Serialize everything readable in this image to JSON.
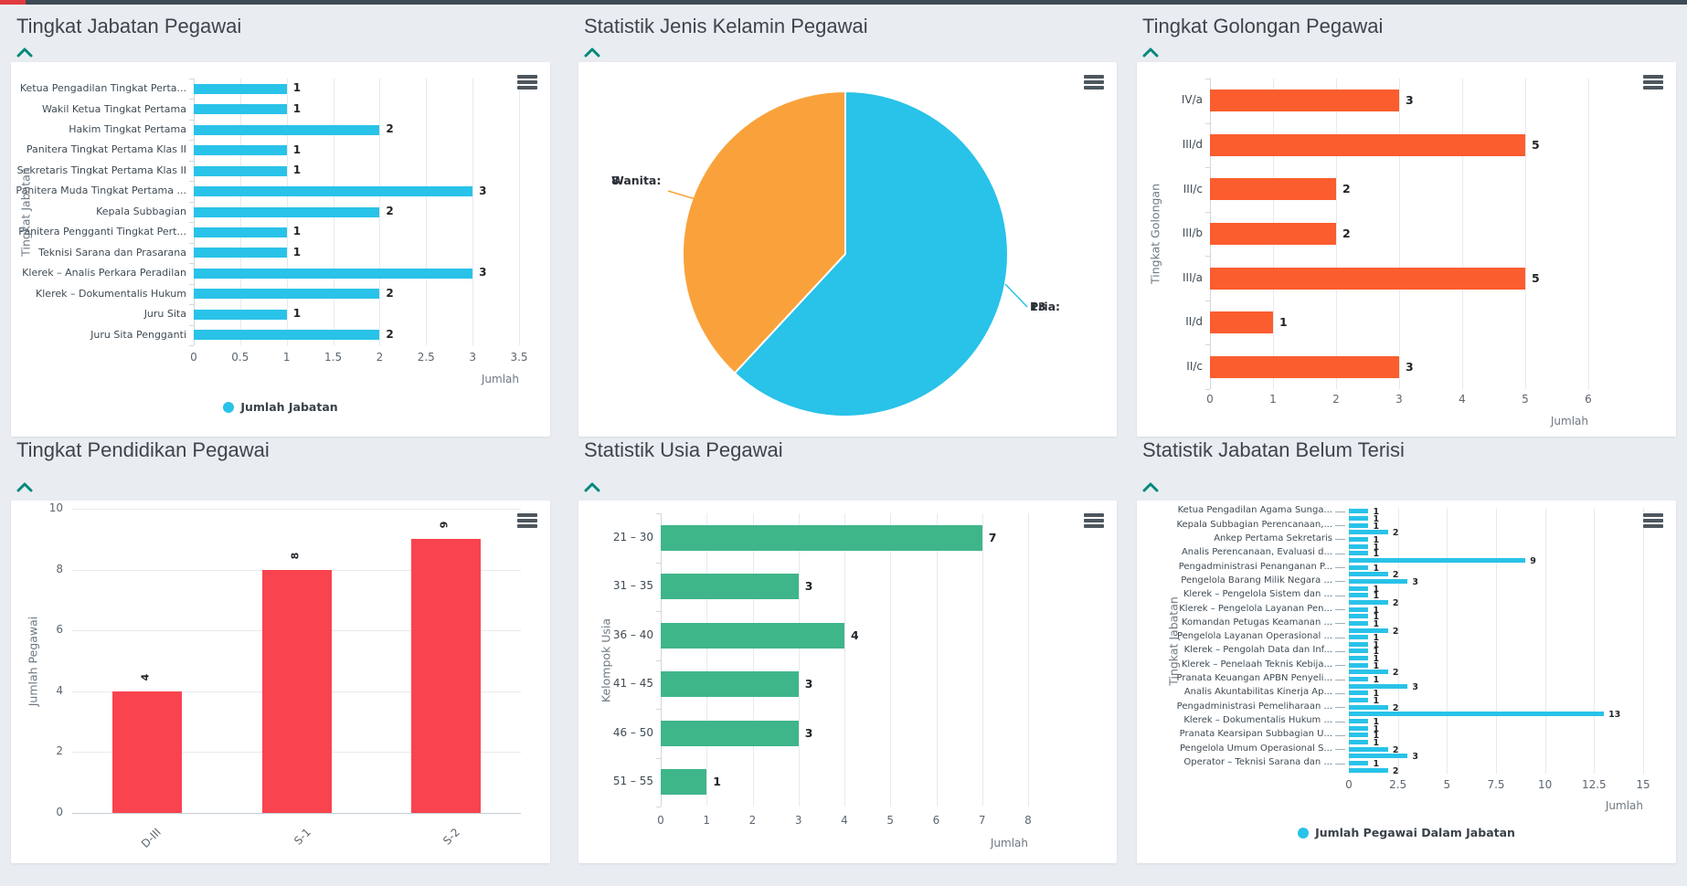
{
  "page": {
    "background": "#e9edf2",
    "top_strip_color": "#3e4b54",
    "top_strip_accent": "#e23b3f",
    "accent_teal": "#00897B"
  },
  "chart_data": [
    {
      "type": "bar",
      "orientation": "horizontal",
      "title": "Tingkat Jabatan Pegawai",
      "categories": [
        "Ketua Pengadilan Tingkat Perta...",
        "Wakil Ketua Tingkat Pertama",
        "Hakim Tingkat Pertama",
        "Panitera Tingkat Pertama Klas II",
        "Sekretaris Tingkat Pertama Klas II",
        "Panitera Muda Tingkat Pertama ...",
        "Kepala Subbagian",
        "Panitera Pengganti Tingkat Pert...",
        "Teknisi Sarana dan Prasarana",
        "Klerek – Analis Perkara Peradilan",
        "Klerek – Dokumentalis Hukum",
        "Juru Sita",
        "Juru Sita Pengganti"
      ],
      "values": [
        1,
        1,
        2,
        1,
        1,
        3,
        2,
        1,
        1,
        3,
        2,
        1,
        2
      ],
      "xticks": [
        0,
        0.5,
        1,
        1.5,
        2,
        2.5,
        3,
        3.5
      ],
      "xmax": 3.5,
      "xlabel": "Jumlah",
      "ylabel": "Tingkat Jabatan",
      "legend": "Jumlah Jabatan",
      "color": "#29C2E8",
      "grid": "vertical"
    },
    {
      "type": "pie",
      "title": "Statistik Jenis Kelamin Pegawai",
      "slices": [
        {
          "label": "Pria",
          "value": 13,
          "color": "#29C2E8"
        },
        {
          "label": "Wanita",
          "value": 8,
          "color": "#F9A23C"
        }
      ],
      "total": 21
    },
    {
      "type": "bar",
      "orientation": "horizontal",
      "title": "Tingkat Golongan Pegawai",
      "categories": [
        "IV/a",
        "III/d",
        "III/c",
        "III/b",
        "III/a",
        "II/d",
        "II/c"
      ],
      "values": [
        3,
        5,
        2,
        2,
        5,
        1,
        3
      ],
      "xticks": [
        0,
        1,
        2,
        3,
        4,
        5,
        6
      ],
      "xmax": 6,
      "xlabel": "Jumlah",
      "ylabel": "Tingkat Golongan",
      "color": "#FB5D2E",
      "grid": "vertical"
    },
    {
      "type": "bar",
      "orientation": "vertical",
      "title": "Tingkat Pendidikan Pegawai",
      "categories": [
        "D-III",
        "S-1",
        "S-2"
      ],
      "values": [
        4,
        8,
        9
      ],
      "yticks": [
        0,
        2,
        4,
        6,
        8,
        10
      ],
      "ymax": 10,
      "ylabel": "Jumlah Pegawai",
      "color": "#F9434F",
      "grid": "horizontal"
    },
    {
      "type": "bar",
      "orientation": "horizontal",
      "title": "Statistik Usia Pegawai",
      "categories": [
        "21 – 30",
        "31 – 35",
        "36 – 40",
        "41 – 45",
        "46 – 50",
        "51 – 55"
      ],
      "values": [
        7,
        3,
        4,
        3,
        3,
        1
      ],
      "xticks": [
        0,
        1,
        2,
        3,
        4,
        5,
        6,
        7,
        8
      ],
      "xmax": 8,
      "xlabel": "Jumlah",
      "ylabel": "Kelompok Usia",
      "color": "#3FB58A",
      "grid": "vertical"
    },
    {
      "type": "bar",
      "orientation": "horizontal-dense",
      "title": "Statistik Jabatan Belum Terisi",
      "categories": [
        "Ketua Pengadilan Agama Sunga...",
        "Kepala Subbagian Perencanaan,...",
        "Ankep Pertama Sekretaris",
        "Analis Perencanaan, Evaluasi d...",
        "Pengadministrasi Penanganan P...",
        "Pengelola Barang Milik Negara ...",
        "Klerek – Pengelola Sistem dan ...",
        "Klerek – Pengelola Layanan Pen...",
        "Komandan Petugas Keamanan ...",
        "Pengelola Layanan Operasional ...",
        "Klerek – Pengolah Data dan Inf...",
        "Klerek – Penelaah Teknis Kebija...",
        "Pranata Keuangan APBN Penyeli...",
        "Analis Akuntabilitas Kinerja Ap...",
        "Pengadministrasi Pemeliharaan ...",
        "Klerek – Dokumentalis Hukum ...",
        "Pranata Kearsipan Subbagian U...",
        "Pengelola Umum Operasional S...",
        "Operator – Teknisi Sarana dan ..."
      ],
      "values": [
        1,
        1,
        1,
        2,
        1,
        1,
        1,
        9,
        1,
        2,
        3,
        1,
        1,
        2,
        1,
        1,
        1,
        2,
        1,
        1,
        1,
        1,
        1,
        2,
        1,
        3,
        1,
        1,
        2,
        13,
        1,
        1,
        1,
        1,
        2,
        3,
        1,
        2
      ],
      "xticks": [
        0,
        2.5,
        5,
        7.5,
        10,
        12.5,
        15
      ],
      "xmax": 15,
      "xlabel": "Jumlah",
      "ylabel": "Tingkat Jabatan",
      "legend": "Jumlah Pegawai Dalam Jabatan",
      "color": "#29C2E8",
      "grid": "vertical"
    }
  ]
}
